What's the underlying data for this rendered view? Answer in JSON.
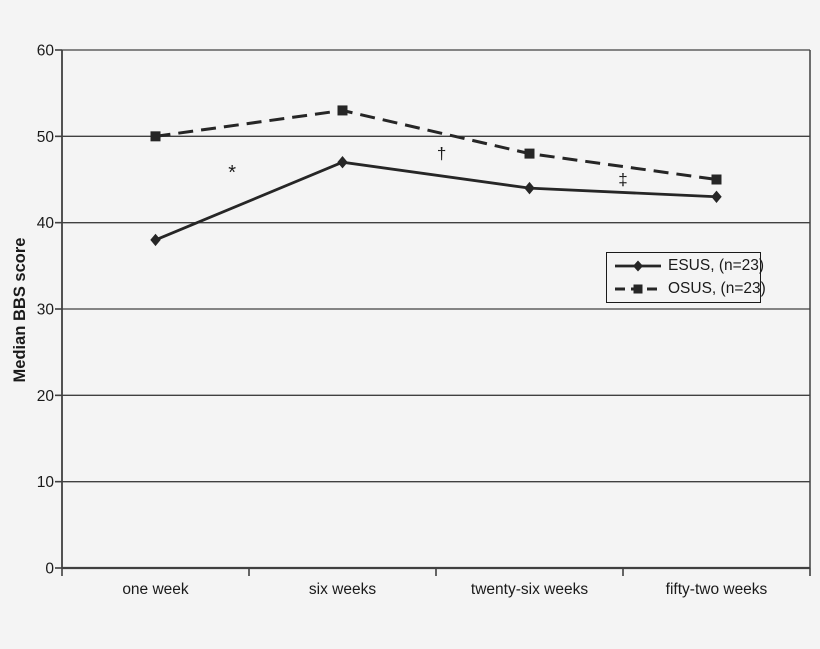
{
  "chart_data": {
    "type": "line",
    "title": "",
    "categories": [
      "one week",
      "six weeks",
      "twenty-six weeks",
      "fifty-two weeks"
    ],
    "series": [
      {
        "name": "ESUS, (n=23)",
        "values": [
          38,
          47,
          44,
          43
        ],
        "line_style": "solid",
        "marker": "diamond"
      },
      {
        "name": "OSUS, (n=23)",
        "values": [
          50,
          53,
          48,
          45
        ],
        "line_style": "dashed",
        "marker": "square"
      }
    ],
    "xlabel": "",
    "ylabel": "Median BBS score",
    "ylim": [
      0,
      60
    ],
    "yticks": [
      0,
      10,
      20,
      30,
      40,
      50,
      60
    ],
    "grid": true,
    "legend_position": "right-center",
    "annotations": [
      {
        "text": "*",
        "x_index": 0.41,
        "y": 46
      },
      {
        "text": "†",
        "x_index": 1.53,
        "y": 48
      },
      {
        "text": "‡",
        "x_index": 2.5,
        "y": 45
      }
    ],
    "colors": {
      "series_line": "#262626",
      "grid_line": "#404040",
      "text": "#1a1a1a",
      "background": "#f4f4f4"
    }
  }
}
